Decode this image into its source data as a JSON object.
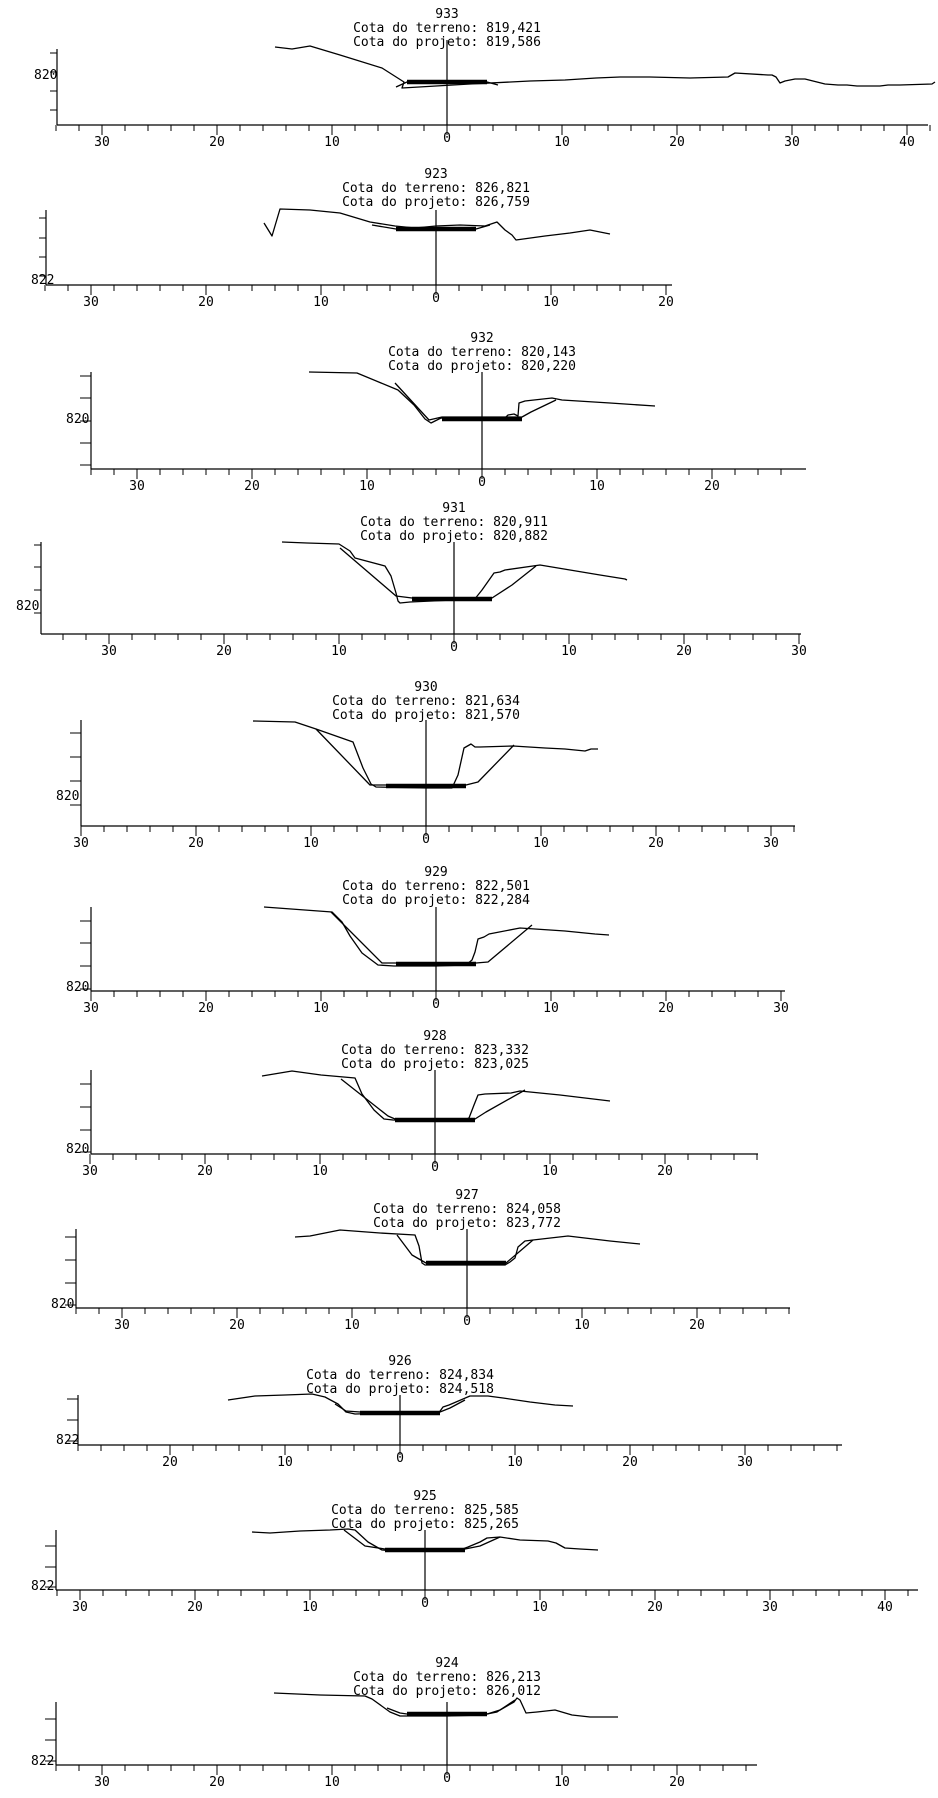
{
  "labels": {
    "terrain_prefix": "Cota do terreno:",
    "project_prefix": "Cota do projeto:"
  },
  "sections": [
    {
      "station": "933",
      "cota_terreno": "819,421",
      "cota_projeto": "819,586",
      "elevation_label": "820",
      "tick_labels": [
        "30",
        "20",
        "10",
        "0",
        "10",
        "20",
        "30",
        "40"
      ]
    },
    {
      "station": "923",
      "cota_terreno": "826,821",
      "cota_projeto": "826,759",
      "elevation_label": "822",
      "tick_labels": [
        "30",
        "20",
        "10",
        "0",
        "10",
        "20"
      ]
    },
    {
      "station": "932",
      "cota_terreno": "820,143",
      "cota_projeto": "820,220",
      "elevation_label": "820",
      "tick_labels": [
        "30",
        "20",
        "10",
        "0",
        "10",
        "20"
      ]
    },
    {
      "station": "931",
      "cota_terreno": "820,911",
      "cota_projeto": "820,882",
      "elevation_label": "820",
      "tick_labels": [
        "30",
        "20",
        "10",
        "0",
        "10",
        "20",
        "30"
      ]
    },
    {
      "station": "930",
      "cota_terreno": "821,634",
      "cota_projeto": "821,570",
      "elevation_label": "820",
      "tick_labels": [
        "30",
        "20",
        "10",
        "0",
        "10",
        "20",
        "30"
      ]
    },
    {
      "station": "929",
      "cota_terreno": "822,501",
      "cota_projeto": "822,284",
      "elevation_label": "820",
      "tick_labels": [
        "30",
        "20",
        "10",
        "0",
        "10",
        "20",
        "30"
      ]
    },
    {
      "station": "928",
      "cota_terreno": "823,332",
      "cota_projeto": "823,025",
      "elevation_label": "820",
      "tick_labels": [
        "30",
        "20",
        "10",
        "0",
        "10",
        "20"
      ]
    },
    {
      "station": "927",
      "cota_terreno": "824,058",
      "cota_projeto": "823,772",
      "elevation_label": "820",
      "tick_labels": [
        "30",
        "20",
        "10",
        "0",
        "10",
        "20"
      ]
    },
    {
      "station": "926",
      "cota_terreno": "824,834",
      "cota_projeto": "824,518",
      "elevation_label": "822",
      "tick_labels": [
        "20",
        "10",
        "0",
        "10",
        "20",
        "30"
      ]
    },
    {
      "station": "925",
      "cota_terreno": "825,585",
      "cota_projeto": "825,265",
      "elevation_label": "822",
      "tick_labels": [
        "30",
        "20",
        "10",
        "0",
        "10",
        "20",
        "30",
        "40"
      ]
    },
    {
      "station": "924",
      "cota_terreno": "826,213",
      "cota_projeto": "826,012",
      "elevation_label": "822",
      "tick_labels": [
        "30",
        "20",
        "10",
        "0",
        "10",
        "20"
      ]
    }
  ]
}
